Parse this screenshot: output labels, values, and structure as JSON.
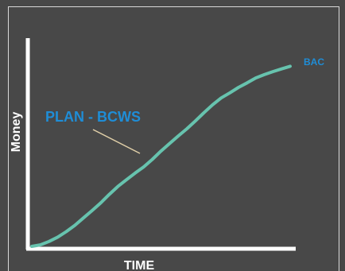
{
  "chart_data": {
    "type": "line",
    "xlabel": "TIME",
    "ylabel": "Money",
    "series": [
      {
        "name": "PLAN - BCWS",
        "x": [
          0,
          1,
          2,
          3,
          4,
          5,
          6,
          7,
          8,
          9,
          10,
          11,
          12,
          13,
          14,
          15,
          16,
          17,
          18,
          19,
          20,
          21,
          22,
          23,
          24,
          25,
          26,
          27,
          28,
          29,
          30
        ],
        "y": [
          0.0,
          0.8,
          2.6,
          4.9,
          7.8,
          11.2,
          15.1,
          19.0,
          23.1,
          27.6,
          31.8,
          35.4,
          38.9,
          42.2,
          46.2,
          50.6,
          54.6,
          58.6,
          62.4,
          66.6,
          71.0,
          75.2,
          78.8,
          81.5,
          84.4,
          86.8,
          89.4,
          91.2,
          92.8,
          94.2,
          95.6
        ]
      }
    ],
    "annotations": [
      "PLAN - BCWS",
      "BAC"
    ],
    "colors": {
      "background": "#484848",
      "axis": "#ffffff",
      "curve": "#67c3ae",
      "label": "#1f8dd6",
      "leader": "#e0cfa8"
    },
    "xlim": [
      0,
      30
    ],
    "ylim": [
      0,
      100
    ],
    "grid": false
  }
}
